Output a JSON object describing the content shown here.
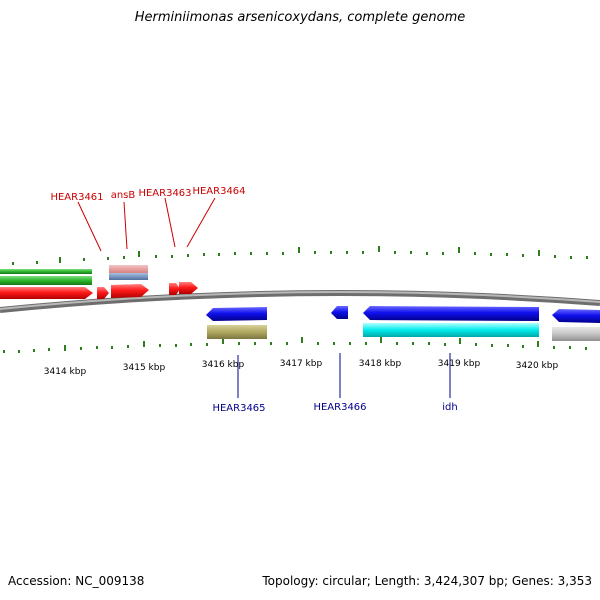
{
  "title": "Herminiimonas arsenicoxydans, complete genome",
  "footer": {
    "accession": "Accession: NC_009138",
    "summary": "Topology: circular; Length: 3,424,307 bp; Genes: 3,353"
  },
  "ruler": {
    "unit": "kbp",
    "labels": [
      "3414 kbp",
      "3415 kbp",
      "3416 kbp",
      "3417 kbp",
      "3418 kbp",
      "3419 kbp",
      "3420 kbp"
    ]
  },
  "gene_labels": {
    "forward": [
      "HEAR3461",
      "ansB",
      "HEAR3463",
      "HEAR3464"
    ],
    "reverse": [
      "HEAR3465",
      "HEAR3466",
      "idh"
    ]
  },
  "colors": {
    "backbone": "#8c8c8c",
    "tick": "#2e7d1e",
    "forward_cds": "#ff0000",
    "reverse_cds": "#0000ee",
    "label_forward": "#cc0000",
    "label_reverse": "#00008b",
    "green_feature": "#2db52d",
    "pink_feature": "#e8a0a0",
    "steel_feature": "#6a8fc0",
    "olive_feature": "#b0a860",
    "cyan_feature": "#00e5e5",
    "gray_feature": "#bdbdbd"
  }
}
